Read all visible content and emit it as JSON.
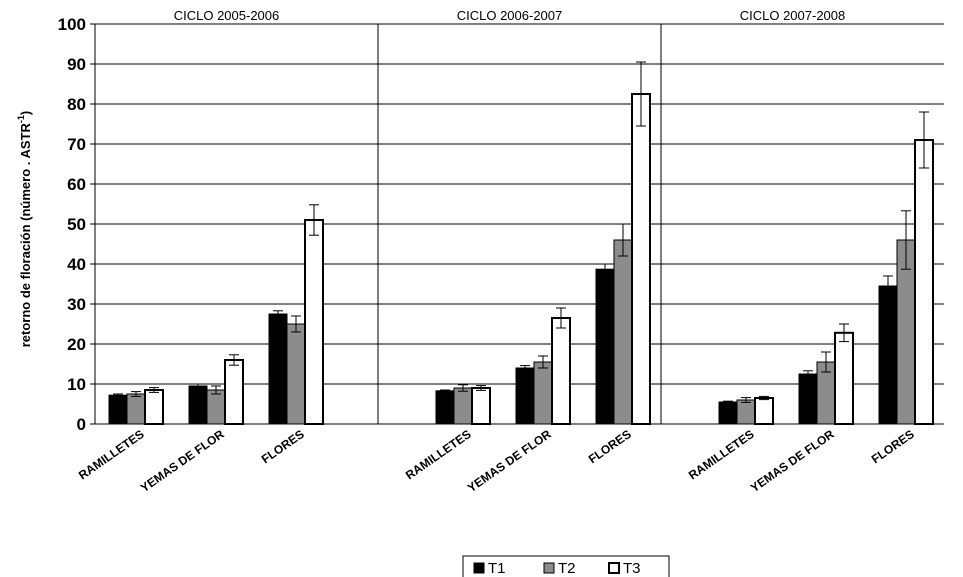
{
  "chart_data": {
    "type": "bar",
    "ylabel_main": "retorno de floración (número . ASTR",
    "ylabel_sup": "-1",
    "ylabel_end": ")",
    "ylim": [
      0,
      100
    ],
    "yticks": [
      "0",
      "10",
      "20",
      "30",
      "40",
      "50",
      "60",
      "70",
      "80",
      "90",
      "100"
    ],
    "grid": true,
    "legend_position": "bottom",
    "series": [
      {
        "name": "T1",
        "color": "#000000"
      },
      {
        "name": "T2",
        "color": "#8c8c8c"
      },
      {
        "name": "T3",
        "color": "#ffffff"
      }
    ],
    "panels": [
      {
        "title": "CICLO 2005-2006",
        "groups": [
          {
            "category": "RAMILLETES",
            "values": [
              7.2,
              7.5,
              8.5
            ],
            "errors": [
              0.3,
              0.6,
              0.6
            ]
          },
          {
            "category": "YEMAS DE FLOR",
            "values": [
              9.5,
              8.5,
              16.0
            ],
            "errors": [
              0.5,
              1.0,
              1.3
            ]
          },
          {
            "category": "FLORES",
            "values": [
              27.5,
              25.0,
              51.0
            ],
            "errors": [
              0.8,
              2.0,
              3.8
            ]
          }
        ]
      },
      {
        "title": "CICLO 2006-2007",
        "groups": [
          {
            "category": "RAMILLETES",
            "values": [
              8.3,
              9.0,
              9.0
            ],
            "errors": [
              0.2,
              0.8,
              0.6
            ]
          },
          {
            "category": "YEMAS DE FLOR",
            "values": [
              14.0,
              15.5,
              26.5
            ],
            "errors": [
              0.6,
              1.5,
              2.5
            ]
          },
          {
            "category": "FLORES",
            "values": [
              38.7,
              46.0,
              82.5
            ],
            "errors": [
              1.3,
              4.0,
              8.0
            ]
          }
        ]
      },
      {
        "title": "CICLO 2007-2008",
        "groups": [
          {
            "category": "RAMILLETES",
            "values": [
              5.5,
              6.0,
              6.5
            ],
            "errors": [
              0.2,
              0.6,
              0.4
            ]
          },
          {
            "category": "YEMAS DE FLOR",
            "values": [
              12.5,
              15.5,
              22.8
            ],
            "errors": [
              0.8,
              2.5,
              2.2
            ]
          },
          {
            "category": "FLORES",
            "values": [
              34.5,
              46.0,
              71.0
            ],
            "errors": [
              2.5,
              7.3,
              7.0
            ]
          }
        ]
      }
    ]
  }
}
